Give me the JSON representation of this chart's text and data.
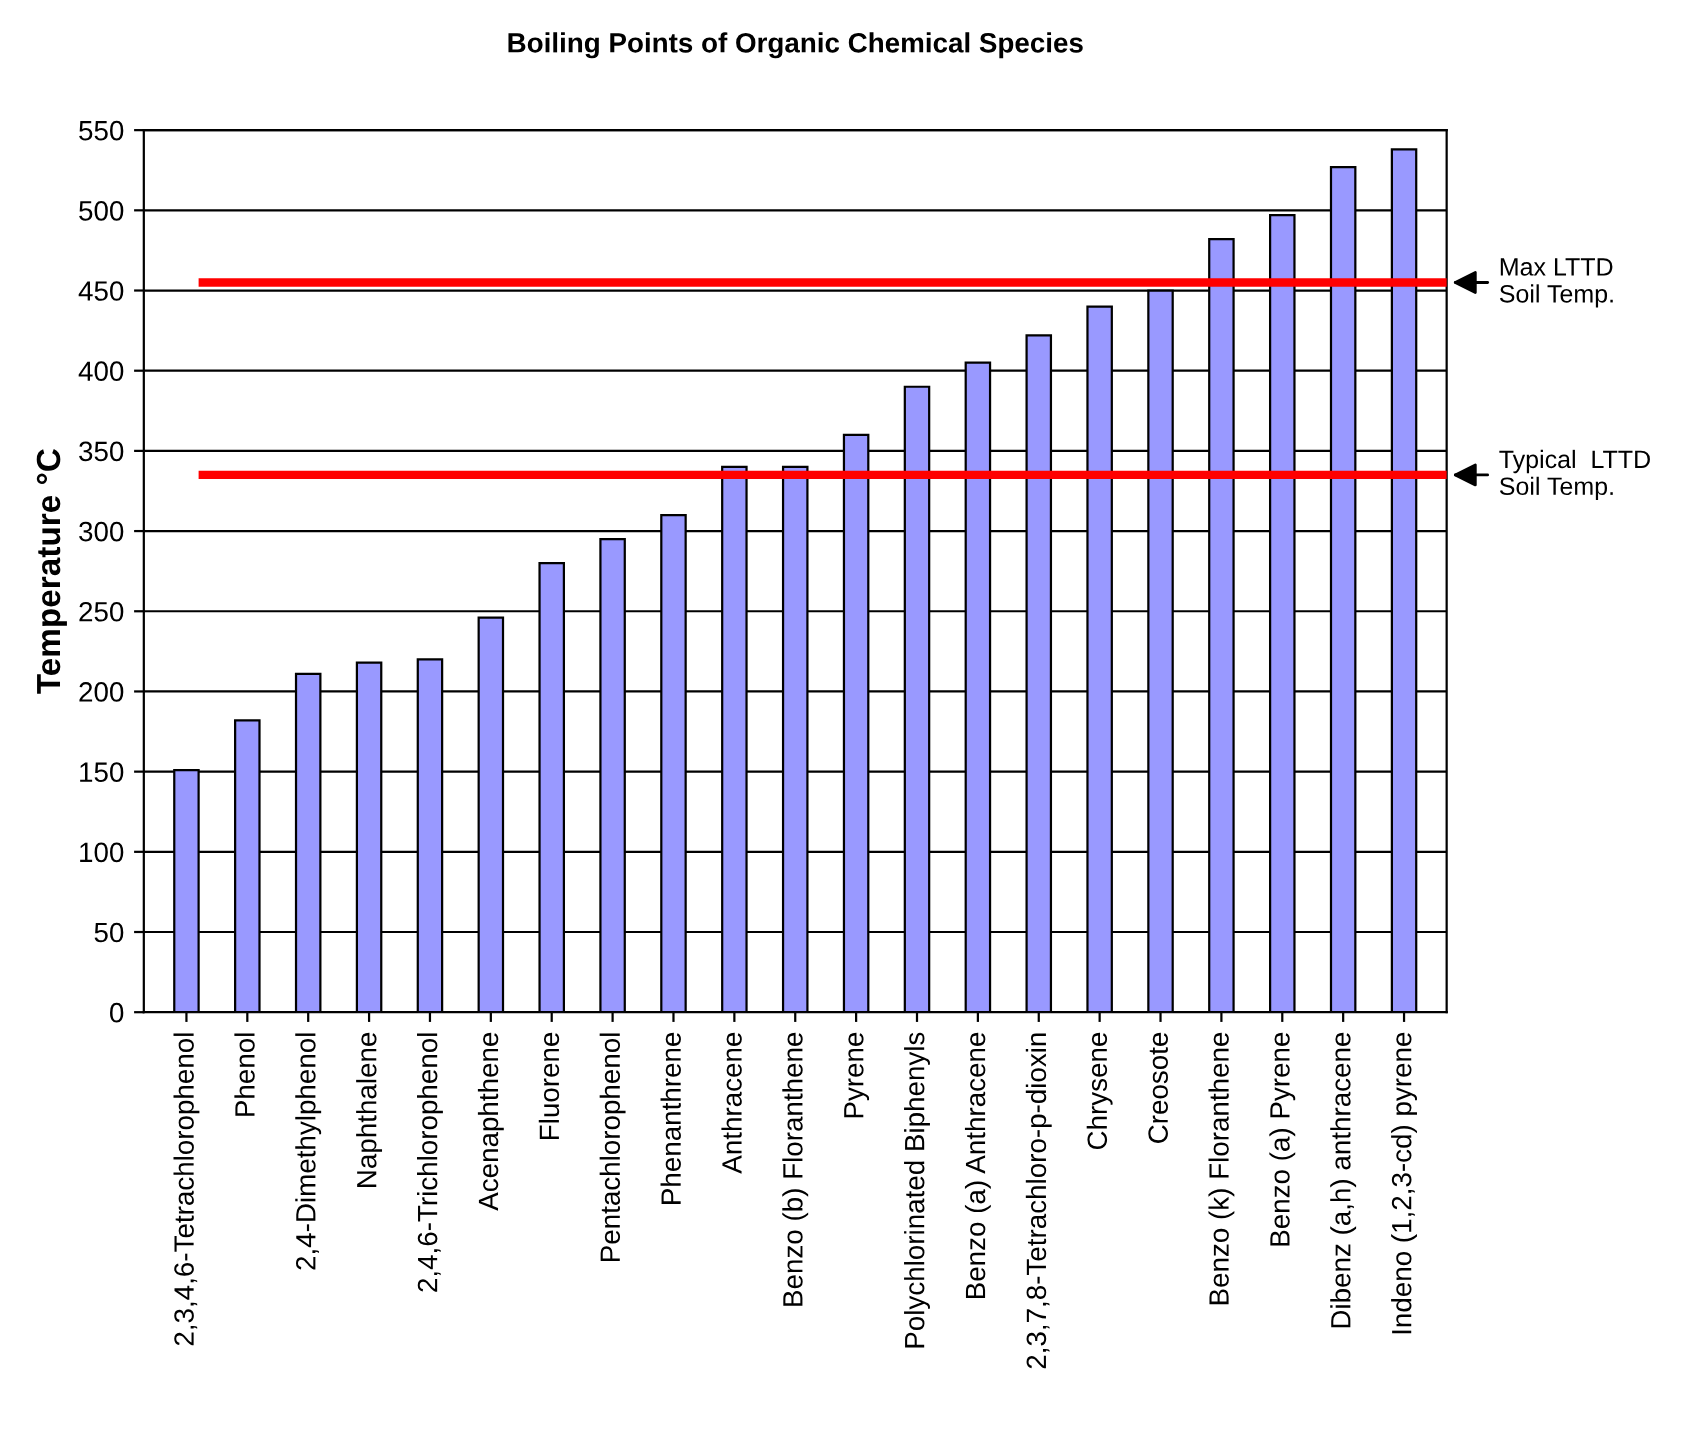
{
  "chart_data": {
    "type": "bar",
    "title": "Boiling Points of Organic Chemical Species",
    "ylabel": "Temperature °C",
    "categories": [
      "2,3,4,6-Tetrachlorophenol",
      "Phenol",
      "2,4-Dimethylphenol",
      "Naphthalene",
      "2,4,6-Trichlorophenol",
      "Acenaphthene",
      "Fluorene",
      "Pentachlorophenol",
      "Phenanthrene",
      "Anthracene",
      "Benzo (b) Floranthene",
      "Pyrene",
      "Polychlorinated Biphenyls",
      "Benzo (a) Anthracene",
      "2,3,7,8-Tetrachloro-p-dioxin",
      "Chrysene",
      "Creosote",
      "Benzo (k) Floranthene",
      "Benzo (a) Pyrene",
      "Dibenz (a,h) anthracene",
      "Indeno (1,2,3-cd) pyrene"
    ],
    "values": [
      151,
      182,
      211,
      218,
      220,
      246,
      280,
      295,
      310,
      340,
      340,
      360,
      390,
      405,
      422,
      440,
      450,
      482,
      497,
      527,
      538
    ],
    "color": "#9999ff",
    "ylim": [
      0,
      550
    ],
    "yticks": [
      0,
      50,
      100,
      150,
      200,
      250,
      300,
      350,
      400,
      450,
      500,
      550
    ],
    "grid": "y",
    "ref_lines": [
      {
        "axis": "y",
        "value": 455,
        "label": "Max LTTD\nSoil Temp.",
        "color": "#ff0000"
      },
      {
        "axis": "y",
        "value": 335,
        "label": "Typical  LTTD\nSoil Temp.",
        "color": "#ff0000"
      }
    ]
  }
}
